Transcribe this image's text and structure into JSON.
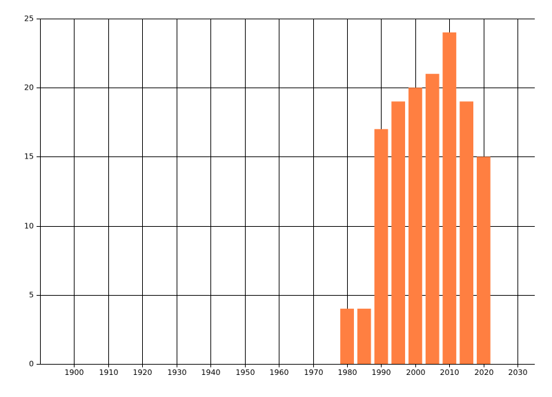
{
  "chart_data": {
    "type": "bar",
    "x": [
      1980,
      1985,
      1990,
      1995,
      2000,
      2005,
      2010,
      2015,
      2020
    ],
    "values": [
      4,
      4,
      17,
      19,
      20,
      21,
      24,
      19,
      15
    ],
    "color": "#ff7f41",
    "xlim": [
      1890,
      2035
    ],
    "xticks": [
      1900,
      1910,
      1920,
      1930,
      1940,
      1950,
      1960,
      1970,
      1980,
      1990,
      2000,
      2010,
      2020,
      2030
    ],
    "ylim": [
      0,
      25
    ],
    "yticks": [
      0,
      5,
      10,
      15,
      20,
      25
    ],
    "grid": true
  }
}
